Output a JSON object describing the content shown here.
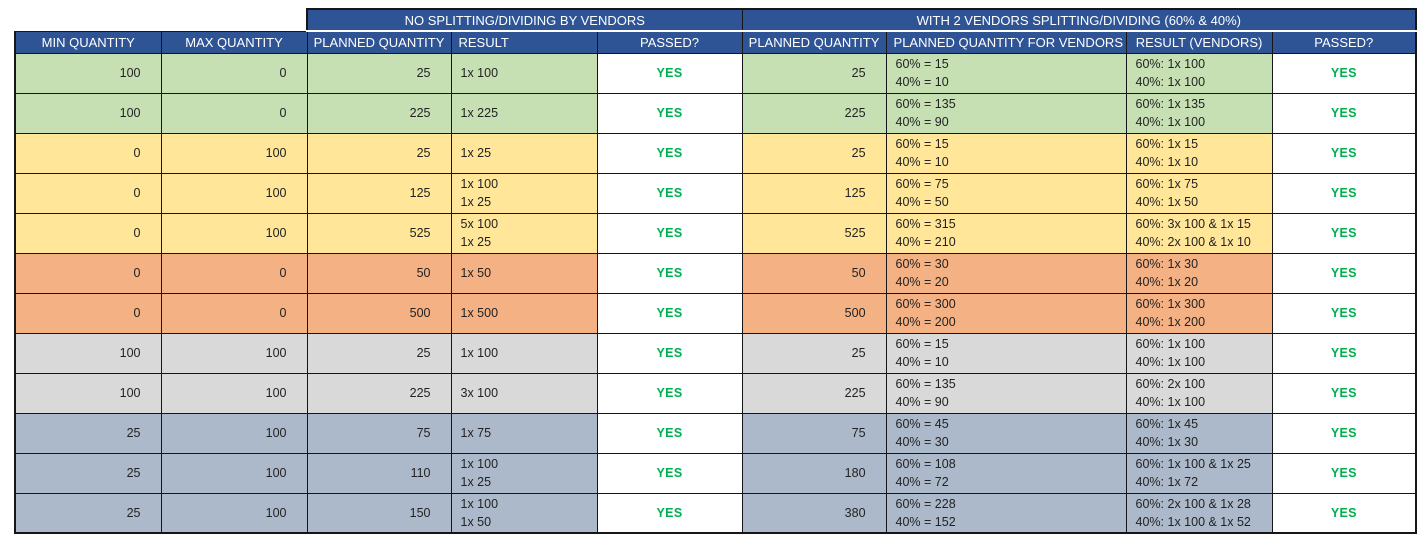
{
  "table": {
    "group_headers": [
      "NO SPLITTING/DIVIDING BY VENDORS",
      "WITH 2 VENDORS SPLITTING/DIVIDING (60% & 40%)"
    ],
    "columns": [
      "MIN QUANTITY",
      "MAX QUANTITY",
      "PLANNED QUANTITY",
      "RESULT",
      "PASSED?",
      "PLANNED QUANTITY",
      "PLANNED QUANTITY FOR VENDORS",
      "RESULT (VENDORS)",
      "PASSED?"
    ],
    "rows": [
      {
        "color": "green",
        "min_quantity": "100",
        "max_quantity": "0",
        "planned_quantity": "25",
        "result_lines": [
          "1x 100"
        ],
        "passed": "YES",
        "vendor_planned_quantity": "25",
        "vendor_split_lines": [
          "60% = 15",
          "40% = 10"
        ],
        "vendor_result_lines": [
          "60%: 1x 100",
          "40%: 1x 100"
        ],
        "vendor_passed": "YES"
      },
      {
        "color": "green",
        "min_quantity": "100",
        "max_quantity": "0",
        "planned_quantity": "225",
        "result_lines": [
          "1x 225"
        ],
        "passed": "YES",
        "vendor_planned_quantity": "225",
        "vendor_split_lines": [
          "60% = 135",
          "40% = 90"
        ],
        "vendor_result_lines": [
          "60%: 1x 135",
          "40%: 1x 100"
        ],
        "vendor_passed": "YES"
      },
      {
        "color": "yellow",
        "min_quantity": "0",
        "max_quantity": "100",
        "planned_quantity": "25",
        "result_lines": [
          "1x 25"
        ],
        "passed": "YES",
        "vendor_planned_quantity": "25",
        "vendor_split_lines": [
          "60% = 15",
          "40% = 10"
        ],
        "vendor_result_lines": [
          "60%: 1x 15",
          "40%: 1x 10"
        ],
        "vendor_passed": "YES"
      },
      {
        "color": "yellow",
        "min_quantity": "0",
        "max_quantity": "100",
        "planned_quantity": "125",
        "result_lines": [
          "1x 100",
          "1x 25"
        ],
        "passed": "YES",
        "vendor_planned_quantity": "125",
        "vendor_split_lines": [
          "60% = 75",
          "40% = 50"
        ],
        "vendor_result_lines": [
          "60%: 1x 75",
          "40%: 1x 50"
        ],
        "vendor_passed": "YES"
      },
      {
        "color": "yellow",
        "min_quantity": "0",
        "max_quantity": "100",
        "planned_quantity": "525",
        "result_lines": [
          "5x 100",
          "1x 25"
        ],
        "passed": "YES",
        "vendor_planned_quantity": "525",
        "vendor_split_lines": [
          "60% = 315",
          "40% = 210"
        ],
        "vendor_result_lines": [
          "60%: 3x 100 & 1x 15",
          "40%: 2x 100 & 1x 10"
        ],
        "vendor_passed": "YES"
      },
      {
        "color": "orange",
        "min_quantity": "0",
        "max_quantity": "0",
        "planned_quantity": "50",
        "result_lines": [
          "1x 50"
        ],
        "passed": "YES",
        "vendor_planned_quantity": "50",
        "vendor_split_lines": [
          "60% = 30",
          "40% = 20"
        ],
        "vendor_result_lines": [
          "60%: 1x 30",
          "40%: 1x 20"
        ],
        "vendor_passed": "YES"
      },
      {
        "color": "orange",
        "min_quantity": "0",
        "max_quantity": "0",
        "planned_quantity": "500",
        "result_lines": [
          "1x 500"
        ],
        "passed": "YES",
        "vendor_planned_quantity": "500",
        "vendor_split_lines": [
          "60% = 300",
          "40% = 200"
        ],
        "vendor_result_lines": [
          "60%: 1x 300",
          "40%: 1x 200"
        ],
        "vendor_passed": "YES"
      },
      {
        "color": "gray",
        "min_quantity": "100",
        "max_quantity": "100",
        "planned_quantity": "25",
        "result_lines": [
          "1x 100"
        ],
        "passed": "YES",
        "vendor_planned_quantity": "25",
        "vendor_split_lines": [
          "60% = 15",
          "40% = 10"
        ],
        "vendor_result_lines": [
          "60%: 1x 100",
          "40%: 1x 100"
        ],
        "vendor_passed": "YES"
      },
      {
        "color": "gray",
        "min_quantity": "100",
        "max_quantity": "100",
        "planned_quantity": "225",
        "result_lines": [
          "3x 100"
        ],
        "passed": "YES",
        "vendor_planned_quantity": "225",
        "vendor_split_lines": [
          "60% = 135",
          "40% = 90"
        ],
        "vendor_result_lines": [
          "60%: 2x 100",
          "40%: 1x 100"
        ],
        "vendor_passed": "YES"
      },
      {
        "color": "bluegray",
        "min_quantity": "25",
        "max_quantity": "100",
        "planned_quantity": "75",
        "result_lines": [
          "1x 75"
        ],
        "passed": "YES",
        "vendor_planned_quantity": "75",
        "vendor_split_lines": [
          "60% = 45",
          "40% = 30"
        ],
        "vendor_result_lines": [
          "60%: 1x 45",
          "40%: 1x 30"
        ],
        "vendor_passed": "YES"
      },
      {
        "color": "bluegray",
        "min_quantity": "25",
        "max_quantity": "100",
        "planned_quantity": "110",
        "result_lines": [
          "1x 100",
          "1x 25"
        ],
        "passed": "YES",
        "vendor_planned_quantity": "180",
        "vendor_split_lines": [
          "60% = 108",
          "40% = 72"
        ],
        "vendor_result_lines": [
          "60%: 1x 100 & 1x 25",
          "40%: 1x 72"
        ],
        "vendor_passed": "YES"
      },
      {
        "color": "bluegray",
        "min_quantity": "25",
        "max_quantity": "100",
        "planned_quantity": "150",
        "result_lines": [
          "1x 100",
          "1x 50"
        ],
        "passed": "YES",
        "vendor_planned_quantity": "380",
        "vendor_split_lines": [
          "60% = 228",
          "40% = 152"
        ],
        "vendor_result_lines": [
          "60%: 2x 100 & 1x 28",
          "40%: 1x 100 & 1x 52"
        ],
        "vendor_passed": "YES"
      }
    ]
  },
  "colors": {
    "header_bg": "#2F5496",
    "pass_green": "#00B050",
    "green": "#C6E0B4",
    "yellow": "#FFE699",
    "orange": "#F4B183",
    "gray": "#D9D9D9",
    "bluegray": "#ACB9CA"
  }
}
